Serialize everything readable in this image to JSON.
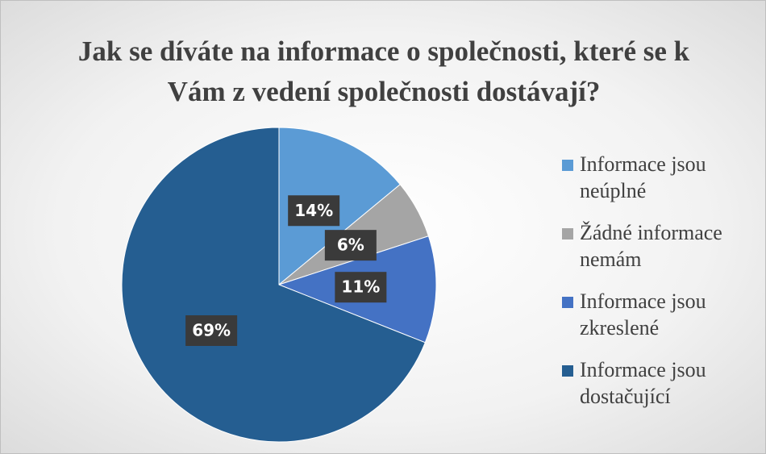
{
  "chart_data": {
    "type": "pie",
    "title": "Jak se díváte na informace o společnosti, které se k Vám z vedení společnosti dostávají?",
    "categories": [
      "Informace jsou neúplné",
      "Žádné informace nemám",
      "Informace jsou zkreslené",
      "Informace jsou dostačující"
    ],
    "values": [
      14,
      6,
      11,
      69
    ],
    "value_labels": [
      "14%",
      "6%",
      "11%",
      "69%"
    ],
    "colors": [
      "#5b9bd5",
      "#a5a5a5",
      "#4472c4",
      "#255e91"
    ],
    "legend": "right"
  }
}
